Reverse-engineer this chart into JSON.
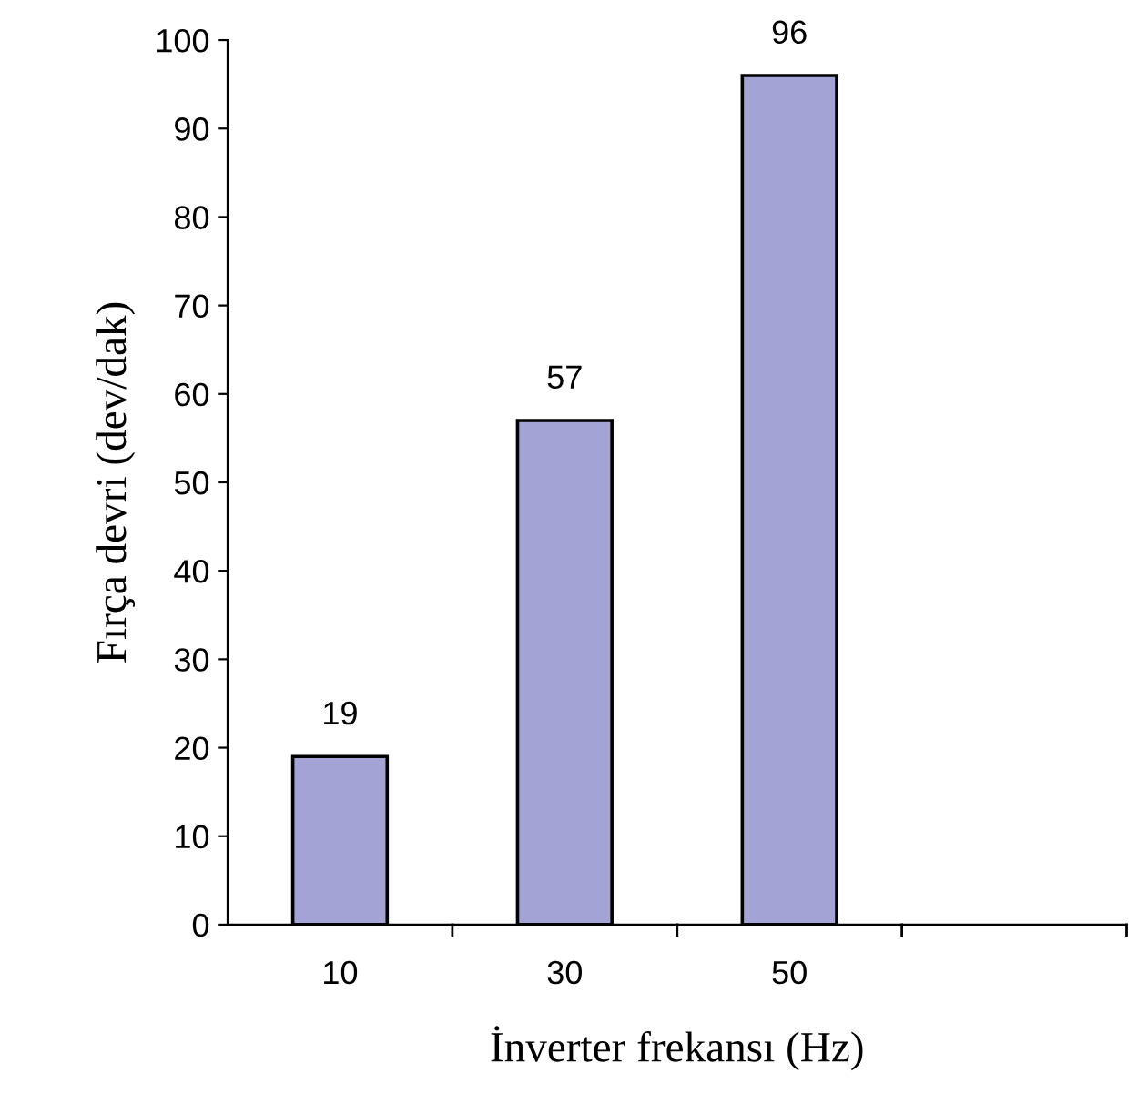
{
  "chart_data": {
    "type": "bar",
    "categories": [
      "10",
      "30",
      "50",
      null
    ],
    "values": [
      19,
      57,
      96,
      null
    ],
    "color": "#a3a3d6",
    "xlabel": "İnverter frekansı (Hz)",
    "ylabel": "Fırça devri (dev/dak)",
    "ylim": [
      0,
      100
    ],
    "yticks": [
      0,
      10,
      20,
      30,
      40,
      50,
      60,
      70,
      80,
      90,
      100
    ],
    "data_labels": true,
    "grid": false,
    "legend": false
  }
}
